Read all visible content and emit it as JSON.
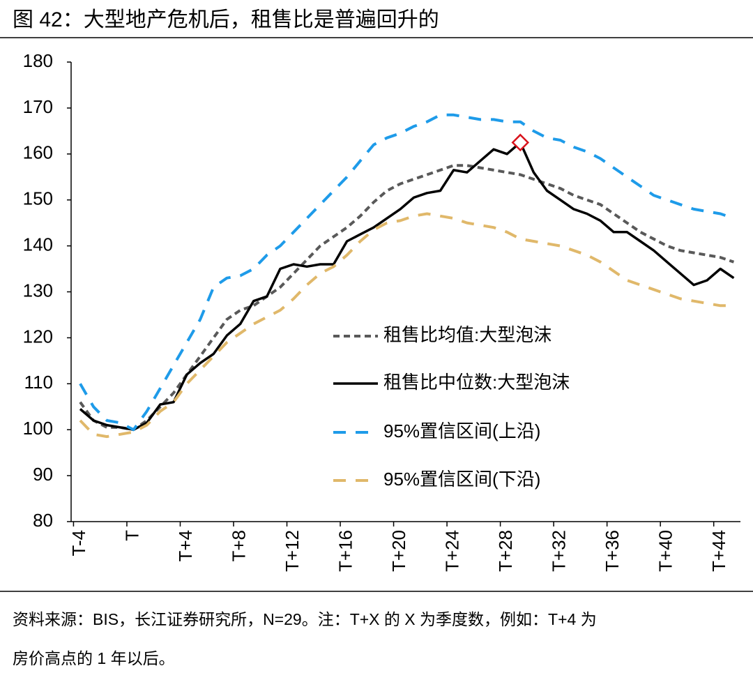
{
  "chart_data": {
    "type": "line",
    "title": "图 42：大型地产危机后，租售比是普遍回升的",
    "source": [
      "资料来源：BIS，长江证券研究所，N=29。注：T+X 的 X 为季度数，例如：T+4 为",
      "房价高点的 1 年以后。"
    ],
    "categories": [
      "T-4",
      null,
      null,
      null,
      "T",
      null,
      null,
      null,
      "T+4",
      null,
      null,
      null,
      "T+8",
      null,
      null,
      null,
      "T+12",
      null,
      null,
      null,
      "T+16",
      null,
      null,
      null,
      "T+20",
      null,
      null,
      null,
      "T+24",
      null,
      null,
      null,
      "T+28",
      null,
      null,
      null,
      "T+32",
      null,
      null,
      null,
      "T+36",
      null,
      null,
      null,
      "T+40",
      null,
      null,
      null,
      "T+44",
      null
    ],
    "ylim": [
      80,
      180
    ],
    "yticks": [
      80,
      90,
      100,
      110,
      120,
      130,
      140,
      150,
      160,
      170,
      180
    ],
    "grid": false,
    "legend": "center-right",
    "highlight": {
      "series": 1,
      "index": 33,
      "color": "#d9121b"
    },
    "series": [
      {
        "name": "租售比均值:大型泡沫",
        "color": "#595959",
        "style": "dotted",
        "values": [
          106,
          102,
          100.5,
          100.5,
          100,
          102,
          105,
          108,
          112,
          116,
          120,
          124,
          126,
          127,
          129,
          131,
          134,
          137,
          140,
          142,
          144,
          146.5,
          149.5,
          152,
          153.5,
          154.5,
          155.5,
          156.5,
          157.5,
          157.5,
          157,
          156.5,
          156,
          155.5,
          154.5,
          153.5,
          152.5,
          151,
          150,
          149,
          147,
          145,
          143,
          141.5,
          140,
          139,
          138.5,
          138,
          137.5,
          136.5
        ]
      },
      {
        "name": "租售比中位数:大型泡沫",
        "color": "#000000",
        "style": "solid",
        "values": [
          104.5,
          102,
          101,
          100.5,
          100,
          101.5,
          105.5,
          106,
          112,
          114.5,
          116.5,
          120.5,
          123,
          128,
          129,
          135,
          136,
          135.5,
          136,
          136,
          141,
          142.5,
          144,
          146,
          148,
          150.5,
          151.5,
          152,
          156.5,
          156,
          158.5,
          161,
          160,
          162.5,
          156,
          152,
          150,
          148,
          147,
          145.5,
          143,
          143,
          141,
          139,
          136.5,
          134,
          131.5,
          132.5,
          135,
          133
        ]
      },
      {
        "name": "95%置信区间(上沿)",
        "color": "#1e9be9",
        "style": "dashed",
        "values": [
          110,
          105,
          102,
          101.5,
          100,
          104,
          109,
          114,
          119,
          124,
          131,
          133,
          133.5,
          135,
          138,
          140,
          143,
          146,
          149,
          152,
          155,
          158.5,
          162,
          163.5,
          164.5,
          166,
          167,
          168.5,
          168.5,
          168,
          167.5,
          167.5,
          167,
          167,
          165,
          163.5,
          163,
          161.5,
          160.5,
          159,
          157,
          155,
          153,
          151,
          150,
          149,
          148,
          147.5,
          147,
          146
        ]
      },
      {
        "name": "95%置信区间(下沿)",
        "color": "#e0b86a",
        "style": "dashed",
        "values": [
          102,
          99,
          98.5,
          99,
          99.5,
          101,
          104,
          106,
          110,
          113,
          116,
          119,
          121,
          123,
          124.5,
          126,
          128.5,
          131.5,
          134,
          135.5,
          138,
          141,
          143.5,
          145,
          145.5,
          146.5,
          147,
          146.5,
          146,
          145,
          144.5,
          144,
          143,
          141.5,
          141,
          140.5,
          140,
          139,
          138,
          136.5,
          134.5,
          132.5,
          131.5,
          130.5,
          129.5,
          128.5,
          128,
          127.5,
          127,
          127
        ]
      }
    ]
  }
}
